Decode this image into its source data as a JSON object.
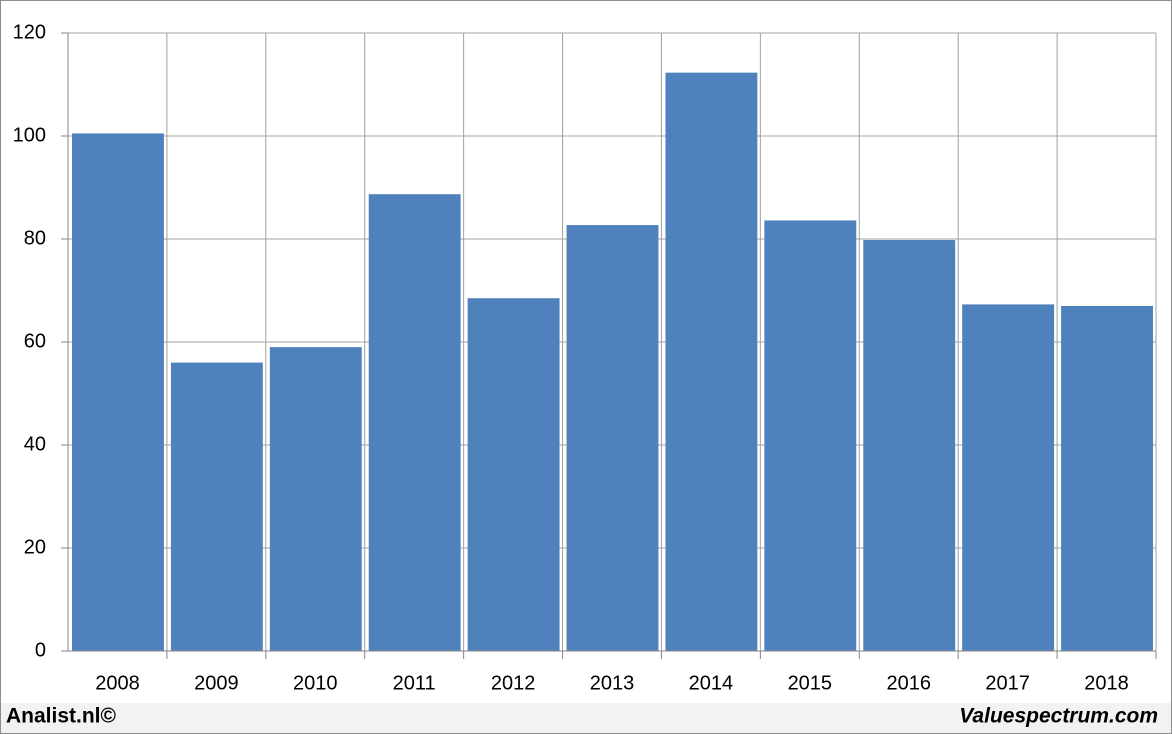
{
  "chart_data": {
    "type": "bar",
    "categories": [
      "2008",
      "2009",
      "2010",
      "2011",
      "2012",
      "2013",
      "2014",
      "2015",
      "2016",
      "2017",
      "2018"
    ],
    "values": [
      100.5,
      56,
      59,
      88.7,
      68.5,
      82.7,
      112.3,
      83.6,
      79.8,
      67.3,
      67
    ],
    "color": "#4f81bd",
    "ylim": [
      0,
      120
    ],
    "yticks": [
      0,
      20,
      40,
      60,
      80,
      100,
      120
    ],
    "grid": true
  },
  "footer": {
    "left": "Analist.nl©",
    "right": "Valuespectrum.com"
  }
}
